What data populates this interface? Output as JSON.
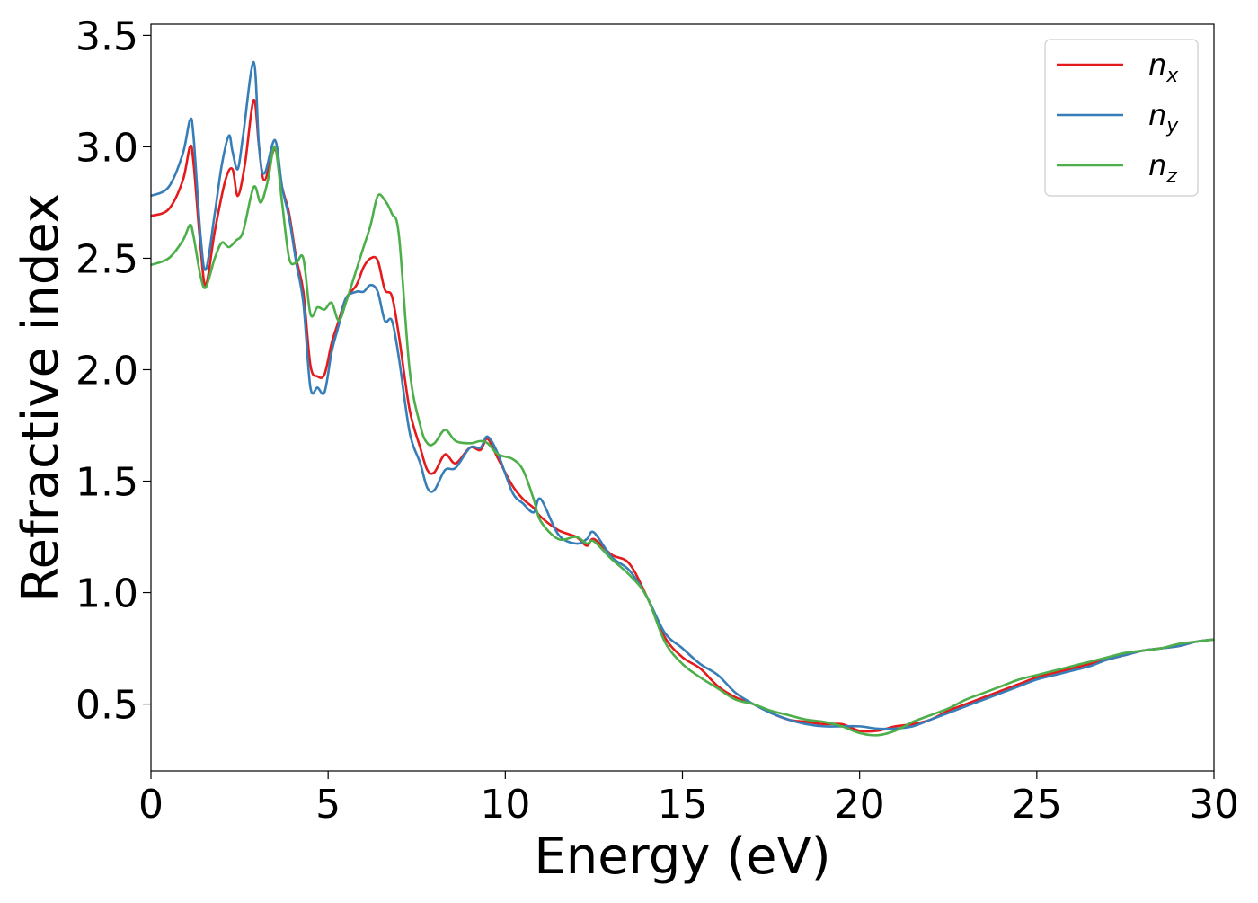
{
  "chart_data": {
    "type": "line",
    "title": "",
    "xlabel": "Energy (eV)",
    "ylabel": "Refractive index",
    "xlim": [
      0,
      30
    ],
    "ylim": [
      0.2,
      3.55
    ],
    "xticks": [
      0,
      5,
      10,
      15,
      20,
      25,
      30
    ],
    "xtick_labels": [
      "0",
      "5",
      "10",
      "15",
      "20",
      "25",
      "30"
    ],
    "yticks": [
      0.5,
      1.0,
      1.5,
      2.0,
      2.5,
      3.0,
      3.5
    ],
    "ytick_labels": [
      "0.5",
      "1.0",
      "1.5",
      "2.0",
      "2.5",
      "3.0",
      "3.5"
    ],
    "grid": false,
    "legend_position": "top-right",
    "series": [
      {
        "name": "n_x",
        "legend_base": "n",
        "legend_sub": "x",
        "color": "#e41a1c",
        "x": [
          0,
          0.5,
          0.9,
          1.1,
          1.2,
          1.4,
          1.55,
          1.8,
          2.1,
          2.3,
          2.45,
          2.65,
          2.9,
          3.05,
          3.2,
          3.5,
          3.7,
          3.9,
          4.1,
          4.3,
          4.5,
          4.7,
          4.9,
          5.1,
          5.3,
          5.5,
          5.8,
          6.0,
          6.2,
          6.4,
          6.6,
          6.8,
          7.0,
          7.3,
          7.6,
          7.8,
          8.0,
          8.3,
          8.6,
          9.0,
          9.3,
          9.5,
          9.8,
          10.2,
          10.5,
          10.8,
          11.0,
          11.5,
          12.0,
          12.3,
          12.5,
          13.0,
          13.5,
          14.0,
          14.5,
          15.0,
          15.5,
          16.0,
          16.5,
          17.0,
          17.5,
          18.0,
          18.5,
          19.0,
          19.5,
          20.0,
          20.5,
          21.0,
          21.5,
          22.0,
          22.5,
          23.0,
          23.5,
          24.0,
          24.5,
          25.0,
          25.5,
          26.0,
          26.5,
          27.0,
          27.5,
          28.0,
          28.5,
          29.0,
          29.5,
          30.0
        ],
        "y": [
          2.69,
          2.72,
          2.85,
          3.0,
          2.93,
          2.55,
          2.38,
          2.62,
          2.85,
          2.9,
          2.78,
          2.92,
          3.21,
          3.0,
          2.85,
          2.99,
          2.82,
          2.7,
          2.5,
          2.35,
          2.02,
          1.97,
          1.98,
          2.12,
          2.22,
          2.32,
          2.38,
          2.46,
          2.5,
          2.49,
          2.36,
          2.33,
          2.15,
          1.82,
          1.65,
          1.55,
          1.54,
          1.62,
          1.58,
          1.65,
          1.64,
          1.69,
          1.6,
          1.48,
          1.42,
          1.38,
          1.34,
          1.28,
          1.25,
          1.21,
          1.24,
          1.17,
          1.13,
          0.98,
          0.8,
          0.71,
          0.66,
          0.58,
          0.53,
          0.5,
          0.46,
          0.43,
          0.42,
          0.41,
          0.41,
          0.38,
          0.38,
          0.4,
          0.41,
          0.43,
          0.47,
          0.5,
          0.53,
          0.56,
          0.59,
          0.62,
          0.64,
          0.66,
          0.68,
          0.7,
          0.72,
          0.74,
          0.75,
          0.76,
          0.78,
          0.79
        ]
      },
      {
        "name": "n_y",
        "legend_base": "n",
        "legend_sub": "y",
        "color": "#377eb8",
        "x": [
          0,
          0.5,
          0.9,
          1.1,
          1.2,
          1.4,
          1.55,
          1.8,
          2.0,
          2.2,
          2.3,
          2.45,
          2.6,
          2.9,
          3.05,
          3.2,
          3.5,
          3.7,
          3.9,
          4.1,
          4.3,
          4.5,
          4.7,
          4.9,
          5.1,
          5.3,
          5.5,
          5.8,
          6.0,
          6.2,
          6.4,
          6.6,
          6.8,
          7.0,
          7.3,
          7.6,
          7.8,
          8.0,
          8.3,
          8.6,
          9.0,
          9.3,
          9.5,
          9.8,
          10.2,
          10.5,
          10.8,
          11.0,
          11.5,
          12.0,
          12.3,
          12.5,
          13.0,
          13.5,
          14.0,
          14.5,
          15.0,
          15.5,
          16.0,
          16.5,
          17.0,
          17.5,
          18.0,
          18.5,
          19.0,
          19.5,
          20.0,
          20.5,
          21.0,
          21.5,
          22.0,
          22.5,
          23.0,
          23.5,
          24.0,
          24.5,
          25.0,
          25.5,
          26.0,
          26.5,
          27.0,
          27.5,
          28.0,
          28.5,
          29.0,
          29.5,
          30.0
        ],
        "y": [
          2.78,
          2.82,
          2.97,
          3.12,
          3.05,
          2.6,
          2.45,
          2.7,
          2.92,
          3.05,
          2.98,
          2.9,
          3.05,
          3.38,
          3.0,
          2.88,
          3.03,
          2.82,
          2.68,
          2.48,
          2.3,
          1.92,
          1.92,
          1.9,
          2.08,
          2.2,
          2.32,
          2.35,
          2.35,
          2.38,
          2.35,
          2.22,
          2.22,
          2.05,
          1.72,
          1.58,
          1.47,
          1.46,
          1.55,
          1.56,
          1.65,
          1.65,
          1.7,
          1.62,
          1.45,
          1.4,
          1.36,
          1.42,
          1.26,
          1.22,
          1.24,
          1.27,
          1.16,
          1.1,
          0.98,
          0.82,
          0.75,
          0.68,
          0.63,
          0.55,
          0.5,
          0.46,
          0.43,
          0.41,
          0.4,
          0.4,
          0.4,
          0.39,
          0.39,
          0.4,
          0.43,
          0.46,
          0.49,
          0.52,
          0.55,
          0.58,
          0.61,
          0.63,
          0.65,
          0.67,
          0.7,
          0.72,
          0.74,
          0.75,
          0.76,
          0.78,
          0.79
        ]
      },
      {
        "name": "n_z",
        "legend_base": "n",
        "legend_sub": "z",
        "color": "#4daf4a",
        "x": [
          0,
          0.5,
          0.9,
          1.1,
          1.2,
          1.4,
          1.55,
          1.8,
          2.0,
          2.2,
          2.4,
          2.6,
          2.9,
          3.1,
          3.3,
          3.5,
          3.7,
          3.9,
          4.1,
          4.3,
          4.5,
          4.7,
          4.9,
          5.1,
          5.3,
          5.5,
          5.8,
          6.0,
          6.2,
          6.4,
          6.6,
          6.8,
          7.0,
          7.3,
          7.6,
          7.8,
          8.0,
          8.3,
          8.6,
          9.0,
          9.3,
          9.5,
          9.8,
          10.2,
          10.5,
          10.8,
          11.0,
          11.5,
          12.0,
          12.3,
          12.5,
          13.0,
          13.5,
          14.0,
          14.5,
          15.0,
          15.5,
          16.0,
          16.5,
          17.0,
          17.5,
          18.0,
          18.5,
          19.0,
          19.5,
          20.0,
          20.5,
          21.0,
          21.5,
          22.0,
          22.5,
          23.0,
          23.5,
          24.0,
          24.5,
          25.0,
          25.5,
          26.0,
          26.5,
          27.0,
          27.5,
          28.0,
          28.5,
          29.0,
          29.5,
          30.0
        ],
        "y": [
          2.47,
          2.5,
          2.58,
          2.65,
          2.6,
          2.42,
          2.37,
          2.5,
          2.57,
          2.55,
          2.58,
          2.62,
          2.82,
          2.75,
          2.85,
          3.0,
          2.75,
          2.5,
          2.48,
          2.5,
          2.25,
          2.28,
          2.27,
          2.3,
          2.22,
          2.3,
          2.45,
          2.55,
          2.65,
          2.78,
          2.76,
          2.7,
          2.6,
          2.0,
          1.75,
          1.67,
          1.67,
          1.73,
          1.68,
          1.67,
          1.68,
          1.67,
          1.62,
          1.6,
          1.55,
          1.42,
          1.32,
          1.24,
          1.25,
          1.22,
          1.23,
          1.15,
          1.08,
          0.98,
          0.78,
          0.68,
          0.62,
          0.57,
          0.52,
          0.5,
          0.47,
          0.45,
          0.43,
          0.42,
          0.4,
          0.37,
          0.36,
          0.38,
          0.42,
          0.45,
          0.48,
          0.52,
          0.55,
          0.58,
          0.61,
          0.63,
          0.65,
          0.67,
          0.69,
          0.71,
          0.73,
          0.74,
          0.75,
          0.77,
          0.78,
          0.79
        ]
      }
    ]
  }
}
